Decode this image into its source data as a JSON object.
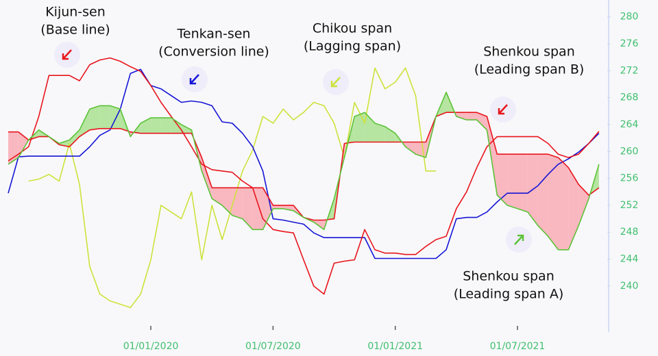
{
  "chart_data": {
    "type": "line",
    "categories": [
      null,
      null,
      null,
      null,
      null,
      null,
      null,
      null,
      null,
      null,
      null,
      null,
      null,
      null,
      "01/01/2020",
      null,
      null,
      null,
      null,
      null,
      null,
      null,
      null,
      null,
      null,
      null,
      "01/07/2020",
      null,
      null,
      null,
      null,
      null,
      null,
      null,
      null,
      null,
      null,
      null,
      "01/01/2021",
      null,
      null,
      null,
      null,
      null,
      null,
      null,
      null,
      null,
      null,
      null,
      "01/07/2021",
      null,
      null,
      null,
      null,
      null,
      null,
      null,
      null
    ],
    "series": [
      {
        "color": "#e8141c",
        "values": [
          258.6,
          259.6,
          260.7,
          265.2,
          271.3,
          271.3,
          271.3,
          270.5,
          272.9,
          273.6,
          273.9,
          273.4,
          272.6,
          271.9,
          269.8,
          267.3,
          265.2,
          263.2,
          260.7,
          258.1,
          257.3,
          257.1,
          256.9,
          255.6,
          254.6,
          250.0,
          248.4,
          248.1,
          247.9,
          243.9,
          240.0,
          238.8,
          243.4,
          243.7,
          243.9,
          248.4,
          245.4,
          244.9,
          244.9,
          244.7,
          244.7,
          245.9,
          246.9,
          247.4,
          251.5,
          254.0,
          257.6,
          260.7,
          262.2,
          262.2,
          262.2,
          262.2,
          262.2,
          261.2,
          259.6,
          259.1,
          259.6,
          261.2,
          263.0
        ]
      },
      {
        "color": "#1414d6",
        "values": [
          253.8,
          259.2,
          259.3,
          259.3,
          259.3,
          259.3,
          259.3,
          259.3,
          260.7,
          262.4,
          263.2,
          266.3,
          271.6,
          272.2,
          269.8,
          269.3,
          268.3,
          267.3,
          267.5,
          267.3,
          266.8,
          264.4,
          264.2,
          262.7,
          260.7,
          257.1,
          250.0,
          249.8,
          249.5,
          249.2,
          247.9,
          247.2,
          247.2,
          247.2,
          247.2,
          247.2,
          244.1,
          244.1,
          244.1,
          244.1,
          244.1,
          244.1,
          244.1,
          245.4,
          250.0,
          250.2,
          250.2,
          251.0,
          252.5,
          253.8,
          253.8,
          253.8,
          254.9,
          256.6,
          258.1,
          258.9,
          259.9,
          261.2,
          262.7
        ]
      },
      {
        "color": "#cde23a",
        "values": [
          null,
          null,
          255.6,
          255.9,
          256.6,
          255.6,
          261.2,
          255.1,
          242.9,
          238.8,
          237.8,
          237.3,
          236.8,
          238.8,
          243.9,
          252.0,
          251.0,
          250.0,
          254.0,
          243.9,
          252.0,
          246.9,
          252.0,
          257.1,
          260.2,
          265.2,
          264.2,
          266.3,
          264.7,
          265.8,
          267.3,
          266.8,
          264.2,
          259.1,
          267.3,
          264.2,
          272.4,
          269.3,
          270.3,
          272.4,
          268.3,
          257.1,
          257.1,
          null,
          null,
          null,
          null,
          null,
          null,
          null,
          null,
          null,
          null,
          null,
          null,
          null,
          null,
          null,
          null
        ]
      },
      {
        "color": "#5cc238",
        "values": [
          258.1,
          259.1,
          261.7,
          263.2,
          262.2,
          261.2,
          261.7,
          263.2,
          266.3,
          266.8,
          266.8,
          266.3,
          262.2,
          264.2,
          265.0,
          265.0,
          265.0,
          264.0,
          263.2,
          257.1,
          253.0,
          252.0,
          250.5,
          250.0,
          248.4,
          248.4,
          251.5,
          251.5,
          251.2,
          250.2,
          249.5,
          248.4,
          253.0,
          259.1,
          265.2,
          265.8,
          264.2,
          263.7,
          262.7,
          260.7,
          259.6,
          259.1,
          265.2,
          268.8,
          265.2,
          264.7,
          264.7,
          263.2,
          253.5,
          252.0,
          251.5,
          251.0,
          249.0,
          247.4,
          245.4,
          245.4,
          249.0,
          253.0,
          258.1
        ]
      },
      {
        "color": "#e8141c",
        "values": [
          262.9,
          262.9,
          261.7,
          262.2,
          262.2,
          261.0,
          260.7,
          262.2,
          263.2,
          263.4,
          263.4,
          263.4,
          262.9,
          262.7,
          262.7,
          262.7,
          262.7,
          262.7,
          262.7,
          259.1,
          254.6,
          254.6,
          254.6,
          254.6,
          254.6,
          254.6,
          252.0,
          252.0,
          252.0,
          250.2,
          249.8,
          249.8,
          250.0,
          261.2,
          261.4,
          261.4,
          261.4,
          261.4,
          261.4,
          261.4,
          261.4,
          261.4,
          265.2,
          265.8,
          265.8,
          265.8,
          265.8,
          265.2,
          259.6,
          259.6,
          259.6,
          259.6,
          259.6,
          259.6,
          259.1,
          257.6,
          255.1,
          253.5,
          254.6
        ]
      }
    ],
    "cloud_fill": [
      "#b5e5a0",
      "#f9b7bf"
    ],
    "ylim": [
      235,
      282
    ],
    "yticks": [
      240,
      244,
      248,
      252,
      256,
      260,
      264,
      268,
      272,
      276,
      280
    ],
    "annotations": [
      {
        "lines": [
          "Kijun-sen",
          "(Base line)"
        ]
      },
      {
        "lines": [
          "Tenkan-sen",
          "(Conversion line)"
        ]
      },
      {
        "lines": [
          "Chikou span",
          "(Lagging span)"
        ]
      },
      {
        "lines": [
          "Shenkou span",
          "(Leading span B)"
        ]
      },
      {
        "lines": [
          "Shenkou span",
          "(Leading span A)"
        ]
      }
    ]
  }
}
